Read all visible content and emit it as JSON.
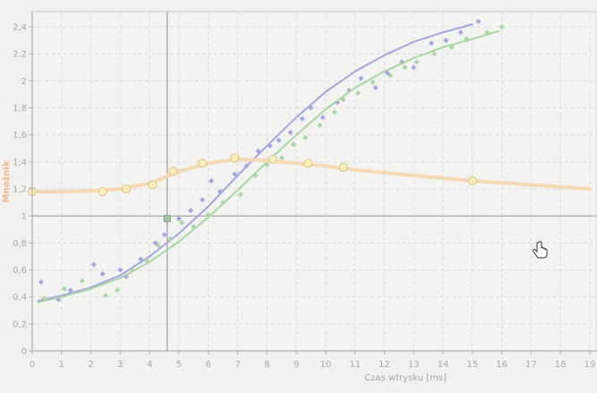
{
  "chart_data": {
    "type": "scatter",
    "xlabel": "Czas wtrysku [ms]",
    "ylabel": "Mnożnik",
    "xlim": [
      0,
      19
    ],
    "ylim": [
      0,
      2.5
    ],
    "x_ticks": [
      "0",
      "1",
      "2",
      "3",
      "4",
      "5",
      "6",
      "7",
      "8",
      "9",
      "10",
      "11",
      "12",
      "13",
      "14",
      "15",
      "16",
      "17",
      "18",
      "19"
    ],
    "y_ticks": [
      "0",
      "0,2",
      "0,4",
      "0,6",
      "0,8",
      "1",
      "1,2",
      "1,4",
      "1,6",
      "1,8",
      "2",
      "2,2",
      "2,4"
    ],
    "grid": true,
    "crosshair": {
      "x": 4.6,
      "y": 0.98
    },
    "reference_line": {
      "y": 1.0
    },
    "series": [
      {
        "color": "#a4a6e4",
        "line": [
          [
            0.2,
            0.37
          ],
          [
            1,
            0.41
          ],
          [
            2,
            0.47
          ],
          [
            3,
            0.56
          ],
          [
            4,
            0.7
          ],
          [
            5,
            0.87
          ],
          [
            6,
            1.07
          ],
          [
            7,
            1.3
          ],
          [
            8,
            1.52
          ],
          [
            9,
            1.73
          ],
          [
            10,
            1.92
          ],
          [
            11,
            2.07
          ],
          [
            12,
            2.19
          ],
          [
            13,
            2.29
          ],
          [
            14,
            2.36
          ],
          [
            15,
            2.42
          ]
        ],
        "points": [
          [
            0.3,
            0.51
          ],
          [
            0.9,
            0.38
          ],
          [
            1.3,
            0.45
          ],
          [
            2.1,
            0.64
          ],
          [
            2.4,
            0.57
          ],
          [
            3,
            0.6
          ],
          [
            3.2,
            0.55
          ],
          [
            3.7,
            0.68
          ],
          [
            4.2,
            0.8
          ],
          [
            4.5,
            0.86
          ],
          [
            5,
            0.98
          ],
          [
            5.4,
            1.04
          ],
          [
            5.8,
            1.12
          ],
          [
            6.1,
            1.26
          ],
          [
            6.4,
            1.18
          ],
          [
            6.9,
            1.31
          ],
          [
            7.3,
            1.37
          ],
          [
            7.7,
            1.48
          ],
          [
            8.1,
            1.52
          ],
          [
            8.4,
            1.56
          ],
          [
            8.8,
            1.62
          ],
          [
            9.2,
            1.72
          ],
          [
            9.5,
            1.8
          ],
          [
            9.9,
            1.73
          ],
          [
            10.4,
            1.84
          ],
          [
            10.8,
            1.93
          ],
          [
            11.2,
            2.02
          ],
          [
            11.7,
            1.95
          ],
          [
            12.1,
            2.06
          ],
          [
            12.6,
            2.14
          ],
          [
            13,
            2.1
          ],
          [
            13.6,
            2.28
          ],
          [
            14.1,
            2.3
          ],
          [
            14.6,
            2.36
          ],
          [
            15.2,
            2.44
          ]
        ]
      },
      {
        "color": "#a9d6a4",
        "line": [
          [
            0.2,
            0.36
          ],
          [
            1,
            0.4
          ],
          [
            2,
            0.46
          ],
          [
            3,
            0.54
          ],
          [
            4,
            0.66
          ],
          [
            5,
            0.81
          ],
          [
            6,
            0.99
          ],
          [
            7,
            1.19
          ],
          [
            8,
            1.4
          ],
          [
            9,
            1.6
          ],
          [
            10,
            1.79
          ],
          [
            11,
            1.95
          ],
          [
            12,
            2.07
          ],
          [
            13,
            2.17
          ],
          [
            14,
            2.25
          ],
          [
            15,
            2.31
          ],
          [
            15.9,
            2.37
          ]
        ],
        "points": [
          [
            0.4,
            0.39
          ],
          [
            1.1,
            0.46
          ],
          [
            1.7,
            0.52
          ],
          [
            2.5,
            0.41
          ],
          [
            2.9,
            0.45
          ],
          [
            3.4,
            0.6
          ],
          [
            3.9,
            0.67
          ],
          [
            4.3,
            0.78
          ],
          [
            4.7,
            0.83
          ],
          [
            5.1,
            0.95
          ],
          [
            5.5,
            0.92
          ],
          [
            6,
            1.01
          ],
          [
            6.5,
            1.1
          ],
          [
            7.1,
            1.16
          ],
          [
            7.6,
            1.3
          ],
          [
            8,
            1.38
          ],
          [
            8.5,
            1.43
          ],
          [
            8.9,
            1.53
          ],
          [
            9.3,
            1.58
          ],
          [
            9.8,
            1.67
          ],
          [
            10.3,
            1.77
          ],
          [
            10.6,
            1.86
          ],
          [
            11.1,
            1.91
          ],
          [
            11.6,
            1.99
          ],
          [
            12.2,
            2.04
          ],
          [
            12.7,
            2.1
          ],
          [
            13.1,
            2.14
          ],
          [
            13.7,
            2.2
          ],
          [
            14.3,
            2.25
          ],
          [
            14.8,
            2.31
          ],
          [
            15.5,
            2.36
          ],
          [
            16,
            2.4
          ]
        ]
      },
      {
        "color": "#f6d9b2",
        "line": [
          [
            0,
            1.18
          ],
          [
            1,
            1.18
          ],
          [
            2,
            1.185
          ],
          [
            3,
            1.2
          ],
          [
            4,
            1.24
          ],
          [
            5,
            1.33
          ],
          [
            6,
            1.39
          ],
          [
            7,
            1.42
          ],
          [
            8,
            1.41
          ],
          [
            9,
            1.39
          ],
          [
            10,
            1.37
          ],
          [
            11,
            1.34
          ],
          [
            12,
            1.32
          ],
          [
            13,
            1.3
          ],
          [
            14,
            1.28
          ],
          [
            15,
            1.26
          ],
          [
            16,
            1.245
          ],
          [
            17,
            1.23
          ],
          [
            18,
            1.215
          ],
          [
            19,
            1.2
          ]
        ],
        "markers": [
          [
            0,
            1.18
          ],
          [
            2.4,
            1.18
          ],
          [
            3.2,
            1.2
          ],
          [
            4.1,
            1.23
          ],
          [
            4.8,
            1.33
          ],
          [
            5.8,
            1.39
          ],
          [
            6.9,
            1.43
          ],
          [
            8.2,
            1.42
          ],
          [
            9.4,
            1.39
          ],
          [
            10.6,
            1.36
          ],
          [
            15,
            1.26
          ]
        ]
      }
    ]
  }
}
